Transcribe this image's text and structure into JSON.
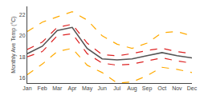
{
  "chart_data": {
    "type": "line",
    "ylabel": "Monthly Ave Temp (°C)",
    "categories": [
      "Jan",
      "Feb",
      "Mar",
      "Apr",
      "May",
      "Jun",
      "Jul",
      "Aug",
      "Sep",
      "Oct",
      "Nov",
      "Dec"
    ],
    "series": [
      {
        "color": "#ffaa00",
        "line_style": "dashed",
        "values": [
          20.4,
          21.3,
          21.8,
          22.3,
          21.5,
          20.0,
          19.2,
          18.8,
          19.3,
          20.3,
          20.4,
          20.0
        ]
      },
      {
        "color": "#ffaa00",
        "line_style": "dashed",
        "values": [
          16.3,
          17.3,
          18.5,
          18.8,
          17.2,
          16.5,
          15.5,
          15.6,
          16.2,
          17.0,
          16.8,
          16.5
        ]
      },
      {
        "color": "#dd2222",
        "line_style": "dashed",
        "values": [
          18.7,
          19.4,
          20.8,
          21.1,
          19.3,
          18.2,
          18.1,
          18.3,
          18.6,
          18.8,
          18.5,
          18.3
        ]
      },
      {
        "color": "#dd2222",
        "line_style": "dashed",
        "values": [
          18.0,
          18.5,
          20.0,
          20.2,
          18.3,
          17.4,
          17.2,
          17.3,
          17.6,
          17.9,
          17.6,
          17.4
        ]
      },
      {
        "color": "#555555",
        "line_style": "solid",
        "values": [
          18.3,
          19.0,
          20.5,
          20.8,
          18.8,
          17.8,
          17.7,
          17.8,
          18.1,
          18.4,
          18.1,
          17.9
        ]
      }
    ],
    "ylim": [
      15.5,
      22.8
    ],
    "yticks": [
      16,
      18,
      20,
      22
    ],
    "grid": false
  }
}
